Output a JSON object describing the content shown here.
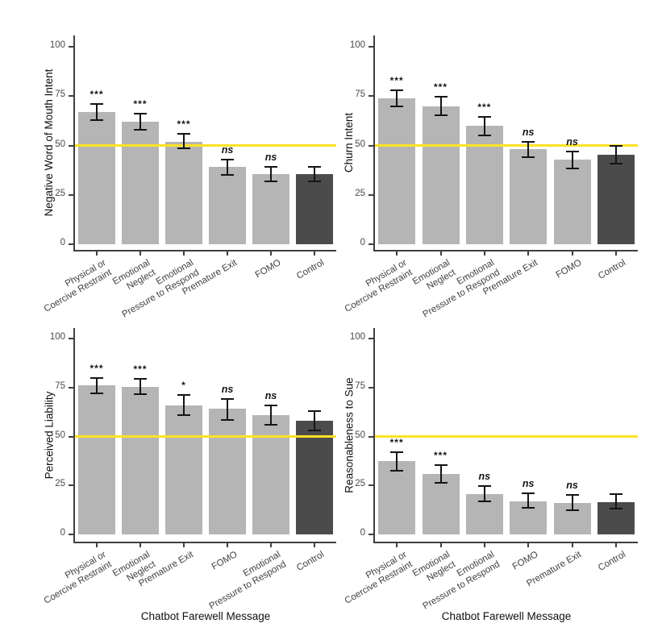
{
  "figure": {
    "xlabel": "Chatbot Farewell Message",
    "refline_value": 50,
    "colors": {
      "bar": "#b5b5b5",
      "control_bar": "#4b4b4b",
      "reference_line": "#ffe226",
      "axis": "#3f3f3f",
      "error_bar": "#141414",
      "tick_text": "#4a4a4a",
      "title_text": "#111111"
    }
  },
  "chart_data": [
    {
      "type": "bar",
      "ylabel": "Negative Word of Mouth Intent",
      "xlabel": "Chatbot Farewell Message",
      "ylim": [
        0,
        100
      ],
      "yticks": [
        0,
        25,
        50,
        75,
        100
      ],
      "reference_line_y": 50,
      "grid": false,
      "categories": [
        "Physical or\nCoercive Restraint",
        "Emotional\nNeglect",
        "Emotional\nPressure to Respond",
        "Premature Exit",
        "FOMO",
        "Control"
      ],
      "values": [
        67,
        62,
        52,
        39,
        35.5,
        35.5
      ],
      "ci_low": [
        63,
        58,
        48.5,
        35,
        32,
        32
      ],
      "ci_high": [
        71,
        66,
        56,
        43,
        39,
        39
      ],
      "significance": [
        "***",
        "***",
        "***",
        "ns",
        "ns",
        null
      ],
      "control_index": 5
    },
    {
      "type": "bar",
      "ylabel": "Churn Intent",
      "xlabel": "Chatbot Farewell Message",
      "ylim": [
        0,
        100
      ],
      "yticks": [
        0,
        25,
        50,
        75,
        100
      ],
      "reference_line_y": 50,
      "grid": false,
      "categories": [
        "Physical or\nCoercive Restraint",
        "Emotional\nNeglect",
        "Emotional\nPressure to Respond",
        "Premature Exit",
        "FOMO",
        "Control"
      ],
      "values": [
        74,
        70,
        60,
        48,
        43,
        45.5
      ],
      "ci_low": [
        70,
        65.5,
        55,
        44,
        38.5,
        41
      ],
      "ci_high": [
        78,
        74.5,
        64.5,
        52,
        47,
        50
      ],
      "significance": [
        "***",
        "***",
        "***",
        "ns",
        "ns",
        null
      ],
      "control_index": 5
    },
    {
      "type": "bar",
      "ylabel": "Perceived Liability",
      "xlabel": "Chatbot Farewell Message",
      "ylim": [
        0,
        100
      ],
      "yticks": [
        0,
        25,
        50,
        75,
        100
      ],
      "reference_line_y": 50,
      "grid": false,
      "categories": [
        "Physical or\nCoercive Restraint",
        "Emotional\nNeglect",
        "Premature Exit",
        "FOMO",
        "Emotional\nPressure to Respond",
        "Control"
      ],
      "values": [
        76,
        75.5,
        66,
        64,
        61,
        58
      ],
      "ci_low": [
        72,
        71.5,
        61,
        58.5,
        56,
        53
      ],
      "ci_high": [
        80,
        79.5,
        71,
        69,
        66,
        63
      ],
      "significance": [
        "***",
        "***",
        "*",
        "ns",
        "ns",
        null
      ],
      "control_index": 5
    },
    {
      "type": "bar",
      "ylabel": "Reasonableness to Sue",
      "xlabel": "Chatbot Farewell Message",
      "ylim": [
        0,
        100
      ],
      "yticks": [
        0,
        25,
        50,
        75,
        100
      ],
      "reference_line_y": 50,
      "grid": false,
      "categories": [
        "Physical or\nCoercive Restraint",
        "Emotional\nNeglect",
        "Emotional\nPressure to Respond",
        "FOMO",
        "Premature Exit",
        "Control"
      ],
      "values": [
        37.5,
        31,
        20.5,
        17,
        16,
        16.5
      ],
      "ci_low": [
        32.5,
        26.5,
        17,
        13.5,
        12.5,
        13
      ],
      "ci_high": [
        42,
        35.5,
        24.5,
        21,
        20,
        20.5
      ],
      "significance": [
        "***",
        "***",
        "ns",
        "ns",
        "ns",
        null
      ],
      "control_index": 5
    }
  ]
}
